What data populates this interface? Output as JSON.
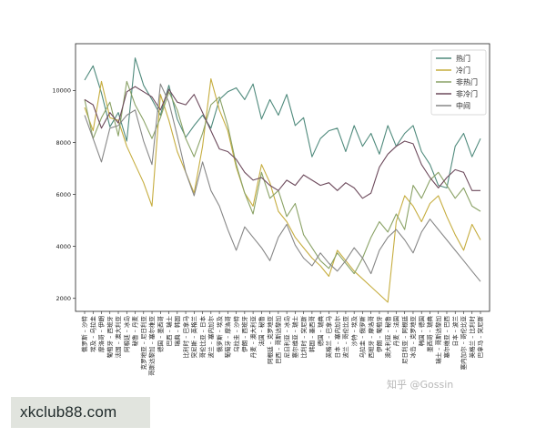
{
  "chart_data": {
    "type": "line",
    "title": "",
    "xlabel": "",
    "ylabel": "",
    "ylim": [
      1500,
      11800
    ],
    "yticks": [
      2000,
      4000,
      6000,
      8000,
      10000
    ],
    "grid": false,
    "legend_position": "top-right",
    "categories": [
      "俄罗斯 – 沙特",
      "埃及 – 乌拉圭",
      "摩洛哥 – 伊朗",
      "葡萄牙 – 西班牙",
      "法国 – 澳大利亚",
      "阿根廷 – 冰岛",
      "秘鲁 – 丹麦",
      "克罗地亚 – 尼日利亚",
      "哥斯达黎加 – 塞尔维亚",
      "德国 – 墨西哥",
      "巴西 – 瑞士",
      "瑞典 – 韩国",
      "比利时 – 巴拿马",
      "突尼斯 – 英格兰",
      "哥伦比亚 – 日本",
      "波兰 – 塞内加尔",
      "俄罗斯 – 埃及",
      "葡萄牙 – 摩洛哥",
      "乌拉圭 – 沙特",
      "伊朗 – 西班牙",
      "丹麦 – 澳大利亚",
      "法国 – 秘鲁",
      "阿根廷 – 克罗地亚",
      "巴西 – 哥斯达黎加",
      "尼日利亚 – 冰岛",
      "塞尔维亚 – 瑞士",
      "比利时 – 突尼斯",
      "韩国 – 墨西哥",
      "德国 – 瑞典",
      "英格兰 – 巴拿马",
      "日本 – 塞内加尔",
      "波兰 – 哥伦比亚",
      "沙特 – 埃及",
      "乌拉圭 – 俄罗斯",
      "西班牙 – 摩洛哥",
      "伊朗 – 葡萄牙",
      "澳大利亚 – 秘鲁",
      "丹麦 – 法国",
      "尼日利亚 – 阿根廷",
      "冰岛 – 克罗地亚",
      "韩国 – 德国",
      "墨西哥 – 瑞典",
      "瑞士 – 哥斯达黎加",
      "塞尔维亚 – 巴西",
      "日本 – 波兰",
      "塞内加尔 – 哥伦比亚",
      "英格兰 – 比利时",
      "巴拿马 – 突尼斯"
    ],
    "series": [
      {
        "name": "热门",
        "color": "#4f8a7c",
        "values": [
          10400,
          10950,
          9900,
          8600,
          9150,
          8050,
          11250,
          10200,
          9650,
          9050,
          10200,
          8900,
          8200,
          8650,
          9050,
          8550,
          9650,
          9950,
          10100,
          9650,
          10250,
          8900,
          9650,
          9050,
          9850,
          8650,
          8950,
          7450,
          8150,
          8450,
          8550,
          7650,
          8650,
          7850,
          8350,
          7550,
          8650,
          7850,
          8350,
          8650,
          7650,
          7150,
          6350,
          6250,
          7850,
          8350,
          7450,
          8150
        ]
      },
      {
        "name": "冷门",
        "color": "#c6ad3f",
        "values": [
          9350,
          8450,
          10350,
          8950,
          8850,
          7850,
          7150,
          6450,
          5550,
          9850,
          8850,
          7650,
          6850,
          6050,
          7850,
          10450,
          9250,
          8450,
          7050,
          6050,
          5550,
          7150,
          6450,
          5350,
          4950,
          4350,
          3950,
          3550,
          3250,
          2850,
          3850,
          3450,
          3050,
          2750,
          2450,
          2150,
          1850,
          4950,
          5950,
          5550,
          4950,
          5650,
          5950,
          5150,
          4450,
          3850,
          4850,
          4250
        ]
      },
      {
        "name": "非热门",
        "color": "#8aa266",
        "values": [
          9650,
          8150,
          8950,
          9550,
          8250,
          10350,
          9450,
          8850,
          8150,
          8950,
          9950,
          9250,
          8150,
          7450,
          8350,
          9450,
          9750,
          8650,
          7150,
          6050,
          5250,
          6850,
          5850,
          6150,
          5150,
          5650,
          4450,
          3950,
          3450,
          3150,
          3750,
          3350,
          2950,
          3550,
          4350,
          4950,
          4550,
          5250,
          4650,
          6350,
          5850,
          6550,
          6850,
          6350,
          5850,
          6250,
          5550,
          5350
        ]
      },
      {
        "name": "非冷门",
        "color": "#6d4a5c",
        "values": [
          9650,
          9450,
          8550,
          9150,
          8750,
          9950,
          10150,
          9950,
          9750,
          9250,
          10050,
          9550,
          9450,
          9850,
          9150,
          8450,
          7750,
          7650,
          7350,
          6850,
          6550,
          6650,
          6350,
          6150,
          6550,
          6350,
          6750,
          6550,
          6350,
          6450,
          6150,
          6450,
          6250,
          5850,
          6050,
          7050,
          7550,
          7850,
          8050,
          7950,
          7150,
          6650,
          6250,
          6650,
          6950,
          6850,
          6150,
          6150
        ]
      },
      {
        "name": "中间",
        "color": "#878787",
        "values": [
          9050,
          8150,
          7250,
          8550,
          8650,
          9050,
          9250,
          8050,
          7150,
          10250,
          9550,
          8250,
          6850,
          5950,
          7250,
          6150,
          5550,
          4650,
          3850,
          4750,
          4350,
          3950,
          3450,
          4350,
          4850,
          4050,
          3550,
          3250,
          3750,
          3350,
          3050,
          3450,
          3950,
          3550,
          2950,
          3850,
          4350,
          4650,
          4250,
          3750,
          4550,
          5050,
          4650,
          4250,
          3850,
          3450,
          3050,
          2650
        ]
      }
    ]
  },
  "watermark": {
    "box_text": "xkclub88.com",
    "zhihu_text": "知乎 @Gossin"
  }
}
